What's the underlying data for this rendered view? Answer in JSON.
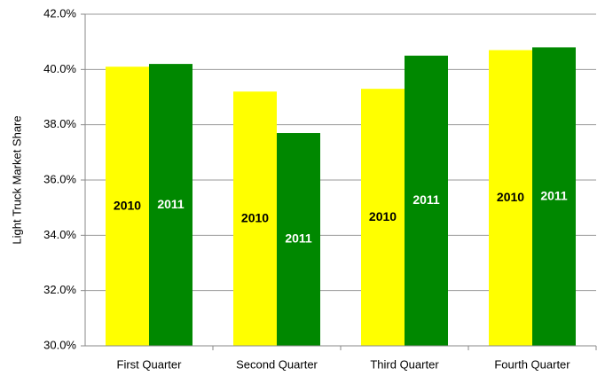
{
  "chart_data": {
    "type": "bar",
    "y_label": "Light Truck Market Share",
    "categories": [
      "First Quarter",
      "Second Quarter",
      "Third Quarter",
      "Fourth Quarter"
    ],
    "series": [
      {
        "name": "2010",
        "color": "#ffff00",
        "label_color": "#000000",
        "values": [
          40.1,
          39.2,
          39.3,
          40.7
        ]
      },
      {
        "name": "2011",
        "color": "#008800",
        "label_color": "#ffffff",
        "values": [
          40.2,
          37.7,
          40.5,
          40.8
        ]
      }
    ],
    "ylim": [
      30,
      42
    ],
    "yticks": [
      {
        "value": 30,
        "label": "30.0%"
      },
      {
        "value": 32,
        "label": "32.0%"
      },
      {
        "value": 34,
        "label": "34.0%"
      },
      {
        "value": 36,
        "label": "36.0%"
      },
      {
        "value": 38,
        "label": "38.0%"
      },
      {
        "value": 40,
        "label": "40.0%"
      },
      {
        "value": 42,
        "label": "42.0%"
      }
    ],
    "grid": true
  }
}
